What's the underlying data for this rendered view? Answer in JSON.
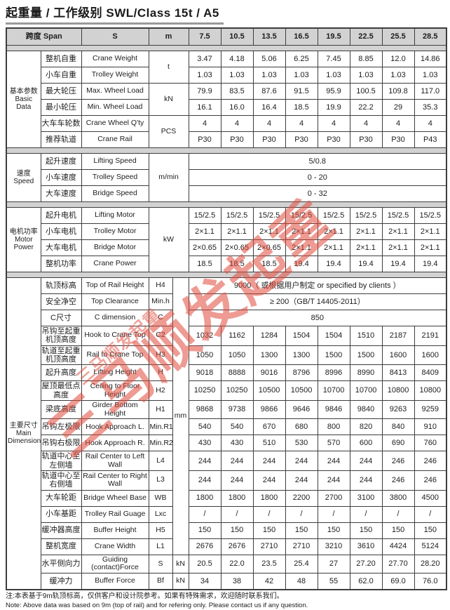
{
  "page": {
    "title": "起重量 / 工作级别  SWL/Class 15t / A5",
    "note_zh": "注:本表基于9m轨顶标高，仅供客户和设计院参考。如果有特殊需求，欢迎随时联系我们。",
    "note_en": "Note: Above data was based on 9m (top of rail) and for refering only. Please contact us if any question.",
    "watermark": "三马顺发起重",
    "colors": {
      "header_bg": "#d2d2d2",
      "border": "#3d3d3d",
      "watermark_red": "#e14b3c"
    }
  },
  "header": {
    "span": "跨度 Span",
    "s": "S",
    "m": "m",
    "values": [
      "7.5",
      "10.5",
      "13.5",
      "16.5",
      "19.5",
      "22.5",
      "25.5",
      "28.5"
    ]
  },
  "sections": [
    {
      "group_zh": "基本参数",
      "group_en": "Basic Data",
      "has_sym": false,
      "units": [
        {
          "label": "t",
          "rows": 2
        },
        {
          "label": "kN",
          "rows": 2
        },
        {
          "label": "PCS",
          "rows": 2
        }
      ],
      "rows": [
        {
          "zh": "整机自重",
          "en": "Crane Weight",
          "values": [
            "3.47",
            "4.18",
            "5.06",
            "6.25",
            "7.45",
            "8.85",
            "12.0",
            "14.86"
          ]
        },
        {
          "zh": "小车自重",
          "en": "Trolley Weight",
          "values": [
            "1.03",
            "1.03",
            "1.03",
            "1.03",
            "1.03",
            "1.03",
            "1.03",
            "1.03"
          ]
        },
        {
          "zh": "最大轮压",
          "en": "Max. Wheel Load",
          "values": [
            "79.9",
            "83.5",
            "87.6",
            "91.5",
            "95.9",
            "100.5",
            "109.8",
            "117.0"
          ]
        },
        {
          "zh": "最小轮压",
          "en": "Min. Wheel Load",
          "values": [
            "16.1",
            "16.0",
            "16.4",
            "18.5",
            "19.9",
            "22.2",
            "29",
            "35.3"
          ]
        },
        {
          "zh": "大车车轮数",
          "en": "Crane Wheel Q'ty",
          "values": [
            "4",
            "4",
            "4",
            "4",
            "4",
            "4",
            "4",
            "4"
          ]
        },
        {
          "zh": "推荐轨道",
          "en": "Crane Rail",
          "values": [
            "P30",
            "P30",
            "P30",
            "P30",
            "P30",
            "P30",
            "P30",
            "P43"
          ]
        }
      ]
    },
    {
      "group_zh": "速度",
      "group_en": "Speed",
      "has_sym": false,
      "units": [
        {
          "label": "m/min",
          "rows": 3
        }
      ],
      "rows": [
        {
          "zh": "起升速度",
          "en": "Lifting Speed",
          "full": "5/0.8"
        },
        {
          "zh": "小车速度",
          "en": "Trolley Speed",
          "full": "0 - 20"
        },
        {
          "zh": "大车速度",
          "en": "Bridge Speed",
          "full": "0 - 32"
        }
      ]
    },
    {
      "group_zh": "电机功率",
      "group_en": "Motor Power",
      "has_sym": false,
      "units": [
        {
          "label": "kW",
          "rows": 4
        }
      ],
      "rows": [
        {
          "zh": "起升电机",
          "en": "Lifting Motor",
          "values": [
            "15/2.5",
            "15/2.5",
            "15/2.5",
            "15/2.5",
            "15/2.5",
            "15/2.5",
            "15/2.5",
            "15/2.5"
          ]
        },
        {
          "zh": "小车电机",
          "en": "Trolley Motor",
          "values": [
            "2×1.1",
            "2×1.1",
            "2×1.1",
            "2×1.1",
            "2×1.1",
            "2×1.1",
            "2×1.1",
            "2×1.1"
          ]
        },
        {
          "zh": "大车电机",
          "en": "Bridge Motor",
          "values": [
            "2×0.65",
            "2×0.65",
            "2×0.65",
            "2×1.1",
            "2×1.1",
            "2×1.1",
            "2×1.1",
            "2×1.1"
          ]
        },
        {
          "zh": "整机功率",
          "en": "Crane Power",
          "values": [
            "18.5",
            "18.5",
            "18.5",
            "19.4",
            "19.4",
            "19.4",
            "19.4",
            "19.4"
          ]
        }
      ]
    },
    {
      "group_zh": "主要尺寸",
      "group_en": "Main Dimension",
      "has_sym": true,
      "units": [
        {
          "label": "mm",
          "rows": 16
        },
        {
          "label": "kN",
          "rows": 1
        },
        {
          "label": "kN",
          "rows": 1
        }
      ],
      "rows": [
        {
          "zh": "轨顶标高",
          "en": "Top of Rail Height",
          "sym": "H4",
          "full": "9000（ 或根据用户制定 or specified by clients ）"
        },
        {
          "zh": "安全净空",
          "en": "Top Clearance",
          "sym": "Min.h",
          "full": "≥ 200（GB/T 14405-2011）"
        },
        {
          "zh": "C尺寸",
          "en": "C dimension",
          "sym": "C",
          "full": "850"
        },
        {
          "zh": "吊钩至起重机顶高度",
          "en": "Hook to Crane Top",
          "sym": "C2",
          "values": [
            "1032",
            "1162",
            "1284",
            "1504",
            "1504",
            "1510",
            "2187",
            "2191"
          ]
        },
        {
          "zh": "轨道至起重机顶高度",
          "en": "Rail to Crane Top",
          "sym": "H3",
          "values": [
            "1050",
            "1050",
            "1300",
            "1300",
            "1500",
            "1500",
            "1600",
            "1600"
          ]
        },
        {
          "zh": "起升高度",
          "en": "Lifting Height",
          "sym": "H",
          "values": [
            "9018",
            "8888",
            "9016",
            "8796",
            "8996",
            "8990",
            "8413",
            "8409"
          ]
        },
        {
          "zh": "屋顶最低点高度",
          "en": "Ceiling to Floor Height",
          "sym": "H2",
          "values": [
            "10250",
            "10250",
            "10500",
            "10500",
            "10700",
            "10700",
            "10800",
            "10800"
          ]
        },
        {
          "zh": "梁底高度",
          "en": "Girder Bottom Height",
          "sym": "H1",
          "values": [
            "9868",
            "9738",
            "9866",
            "9646",
            "9846",
            "9840",
            "9263",
            "9259"
          ]
        },
        {
          "zh": "吊钩左极限",
          "en": "Hook Approach L.",
          "sym": "Min.R1",
          "values": [
            "540",
            "540",
            "670",
            "680",
            "800",
            "820",
            "840",
            "910"
          ]
        },
        {
          "zh": "吊钩右极限",
          "en": "Hook Approach R.",
          "sym": "Min.R2",
          "values": [
            "430",
            "430",
            "510",
            "530",
            "570",
            "600",
            "690",
            "760"
          ]
        },
        {
          "zh": "轨道中心至左侧墙",
          "en": "Rail Center to Left Wall",
          "sym": "L4",
          "values": [
            "244",
            "244",
            "244",
            "244",
            "244",
            "244",
            "246",
            "246"
          ]
        },
        {
          "zh": "轨道中心至右侧墙",
          "en": "Rail Center to Right Wall",
          "sym": "L3",
          "values": [
            "244",
            "244",
            "244",
            "244",
            "244",
            "244",
            "246",
            "246"
          ]
        },
        {
          "zh": "大车轮距",
          "en": "Bridge Wheel Base",
          "sym": "WB",
          "values": [
            "1800",
            "1800",
            "1800",
            "2200",
            "2700",
            "3100",
            "3800",
            "4500"
          ]
        },
        {
          "zh": "小车基距",
          "en": "Trolley Rail Guage",
          "sym": "Lxc",
          "values": [
            "/",
            "/",
            "/",
            "/",
            "/",
            "/",
            "/",
            "/"
          ]
        },
        {
          "zh": "缓冲器高度",
          "en": "Buffer Height",
          "sym": "H5",
          "values": [
            "150",
            "150",
            "150",
            "150",
            "150",
            "150",
            "150",
            "150"
          ]
        },
        {
          "zh": "整机宽度",
          "en": "Crane Width",
          "sym": "L1",
          "values": [
            "2676",
            "2676",
            "2710",
            "2710",
            "3210",
            "3610",
            "4424",
            "5124"
          ]
        },
        {
          "zh": "水平侧向力",
          "en": "Guiding (contact)Force",
          "sym": "S",
          "values": [
            "20.5",
            "22.0",
            "23.5",
            "25.4",
            "27",
            "27.20",
            "27.70",
            "28.20"
          ]
        },
        {
          "zh": "缓冲力",
          "en": "Buffer Force",
          "sym": "Bf",
          "values": [
            "34",
            "38",
            "42",
            "48",
            "55",
            "62.0",
            "69.0",
            "76.0"
          ]
        }
      ]
    }
  ]
}
